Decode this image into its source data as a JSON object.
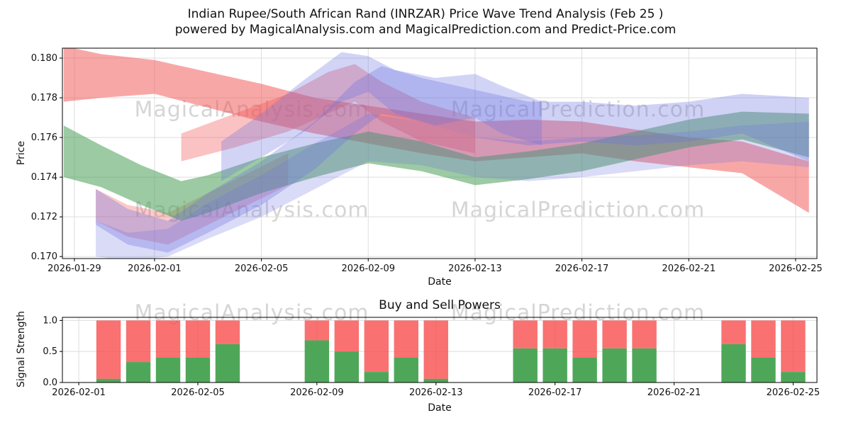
{
  "watermarks": {
    "analysis": "MagicalAnalysis.com",
    "prediction": "MagicalPrediction.com"
  },
  "chart_data": [
    {
      "type": "area",
      "title": "Indian Rupee/South African Rand (INRZAR) Price Wave Trend Analysis (Feb 25 )",
      "subtitle": "powered by MagicalAnalysis.com and MagicalPrediction.com and Predict-Price.com",
      "xlabel": "Date",
      "ylabel": "Price",
      "grid": true,
      "legend": "none",
      "xlim_days": [
        -0.45,
        27.8
      ],
      "ylim": [
        0.1699,
        0.1805
      ],
      "x_ticks": [
        {
          "label": "2026-01-29",
          "day": 0
        },
        {
          "label": "2026-02-01",
          "day": 3
        },
        {
          "label": "2026-02-05",
          "day": 7
        },
        {
          "label": "2026-02-09",
          "day": 11
        },
        {
          "label": "2026-02-13",
          "day": 15
        },
        {
          "label": "2026-02-17",
          "day": 19
        },
        {
          "label": "2026-02-21",
          "day": 23
        },
        {
          "label": "2026-02-25",
          "day": 27
        }
      ],
      "y_ticks": [
        {
          "label": "0.170",
          "value": 0.17
        },
        {
          "label": "0.172",
          "value": 0.172
        },
        {
          "label": "0.174",
          "value": 0.174
        },
        {
          "label": "0.176",
          "value": 0.176
        },
        {
          "label": "0.178",
          "value": 0.178
        },
        {
          "label": "0.180",
          "value": 0.18
        }
      ],
      "bands": [
        {
          "name": "red-upper-trend",
          "color": "#f25050",
          "opacity": 0.5,
          "points": [
            [
              -0.4,
              0.1778,
              0.1806
            ],
            [
              1,
              0.178,
              0.1802
            ],
            [
              3,
              0.1782,
              0.1799
            ],
            [
              5,
              0.1775,
              0.1793
            ],
            [
              7,
              0.1768,
              0.1787
            ],
            [
              9,
              0.1762,
              0.178
            ],
            [
              11,
              0.1757,
              0.1776
            ],
            [
              13,
              0.1752,
              0.1772
            ],
            [
              15,
              0.1748,
              0.1768
            ],
            [
              17,
              0.175,
              0.1769
            ],
            [
              19,
              0.1752,
              0.1768
            ],
            [
              21,
              0.1748,
              0.1764
            ],
            [
              23,
              0.1745,
              0.176
            ],
            [
              25,
              0.1742,
              0.1758
            ],
            [
              27.5,
              0.1722,
              0.1748
            ]
          ]
        },
        {
          "name": "red-mid-wave",
          "color": "#f25050",
          "opacity": 0.35,
          "points": [
            [
              4,
              0.1748,
              0.1762
            ],
            [
              6,
              0.1755,
              0.1772
            ],
            [
              8,
              0.1763,
              0.1782
            ],
            [
              9.5,
              0.1772,
              0.1793
            ],
            [
              10.5,
              0.1778,
              0.1797
            ],
            [
              11.5,
              0.1768,
              0.1788
            ],
            [
              13,
              0.1758,
              0.1778
            ],
            [
              15,
              0.1752,
              0.177
            ]
          ]
        },
        {
          "name": "red-lower-left-wave",
          "color": "#f25050",
          "opacity": 0.3,
          "points": [
            [
              0.8,
              0.1718,
              0.1734
            ],
            [
              2,
              0.171,
              0.1726
            ],
            [
              3.5,
              0.1706,
              0.1722
            ],
            [
              5,
              0.1716,
              0.1732
            ],
            [
              6.5,
              0.1726,
              0.1742
            ],
            [
              8,
              0.1736,
              0.1752
            ]
          ]
        },
        {
          "name": "green-trend",
          "color": "#4a9e58",
          "opacity": 0.55,
          "points": [
            [
              -0.4,
              0.174,
              0.1766
            ],
            [
              1,
              0.1735,
              0.1756
            ],
            [
              2.5,
              0.1726,
              0.1746
            ],
            [
              4,
              0.1718,
              0.1738
            ],
            [
              5,
              0.1722,
              0.1741
            ],
            [
              7,
              0.1732,
              0.175
            ],
            [
              9,
              0.174,
              0.1757
            ],
            [
              11,
              0.1747,
              0.1763
            ],
            [
              13,
              0.1743,
              0.1758
            ],
            [
              15,
              0.1736,
              0.175
            ],
            [
              17,
              0.1739,
              0.1753
            ],
            [
              19,
              0.1743,
              0.1757
            ],
            [
              21,
              0.1749,
              0.1763
            ],
            [
              23,
              0.1755,
              0.1769
            ],
            [
              25,
              0.1759,
              0.1773
            ],
            [
              27.5,
              0.175,
              0.1772
            ]
          ]
        },
        {
          "name": "blue-main-wave",
          "color": "#6a6fe0",
          "opacity": 0.32,
          "points": [
            [
              0.8,
              0.1716,
              0.1734
            ],
            [
              2,
              0.1706,
              0.1724
            ],
            [
              3.5,
              0.1702,
              0.1718
            ],
            [
              5,
              0.1712,
              0.1732
            ],
            [
              7,
              0.1726,
              0.1748
            ],
            [
              9,
              0.1744,
              0.1768
            ],
            [
              10.5,
              0.1762,
              0.1788
            ],
            [
              11.5,
              0.1772,
              0.1796
            ],
            [
              13,
              0.1768,
              0.179
            ],
            [
              15,
              0.176,
              0.1784
            ],
            [
              17,
              0.1756,
              0.1778
            ],
            [
              19,
              0.1758,
              0.1778
            ],
            [
              21,
              0.1756,
              0.1776
            ],
            [
              23,
              0.1758,
              0.1778
            ],
            [
              25,
              0.1762,
              0.1782
            ],
            [
              27.5,
              0.1748,
              0.178
            ]
          ]
        },
        {
          "name": "blue-lower-wave",
          "color": "#6a6fe0",
          "opacity": 0.25,
          "points": [
            [
              0.8,
              0.17,
              0.1718
            ],
            [
              2,
              0.1698,
              0.1712
            ],
            [
              3.5,
              0.17,
              0.1714
            ],
            [
              5,
              0.1709,
              0.1727
            ],
            [
              7,
              0.172,
              0.1741
            ],
            [
              9,
              0.1734,
              0.1757
            ],
            [
              11,
              0.1748,
              0.1772
            ],
            [
              13,
              0.1746,
              0.1768
            ],
            [
              15,
              0.174,
              0.176
            ],
            [
              17,
              0.1738,
              0.1758
            ],
            [
              19,
              0.174,
              0.176
            ],
            [
              21,
              0.1743,
              0.1761
            ],
            [
              23,
              0.1746,
              0.1763
            ],
            [
              25,
              0.1748,
              0.1766
            ],
            [
              27.5,
              0.1745,
              0.1768
            ]
          ]
        },
        {
          "name": "blue-peak-wave",
          "color": "#6a6fe0",
          "opacity": 0.3,
          "points": [
            [
              5.5,
              0.1738,
              0.1758
            ],
            [
              7,
              0.175,
              0.1772
            ],
            [
              8.5,
              0.1762,
              0.1788
            ],
            [
              10,
              0.1778,
              0.1803
            ],
            [
              11,
              0.1783,
              0.1801
            ],
            [
              12,
              0.1772,
              0.1794
            ],
            [
              13.5,
              0.1766,
              0.179
            ],
            [
              15,
              0.177,
              0.1792
            ],
            [
              16,
              0.1762,
              0.1786
            ],
            [
              17.5,
              0.1756,
              0.1778
            ]
          ]
        }
      ]
    },
    {
      "type": "bar",
      "title": "Buy and Sell Powers",
      "xlabel": "Date",
      "ylabel": "Signal Strength",
      "grid": true,
      "stacked": true,
      "xlim_days": [
        -0.55,
        24.8
      ],
      "ylim": [
        0,
        1.05
      ],
      "x_ticks": [
        {
          "label": "2026-02-01",
          "day": 0
        },
        {
          "label": "2026-02-05",
          "day": 4
        },
        {
          "label": "2026-02-09",
          "day": 8
        },
        {
          "label": "2026-02-13",
          "day": 12
        },
        {
          "label": "2026-02-17",
          "day": 16
        },
        {
          "label": "2026-02-21",
          "day": 20
        },
        {
          "label": "2026-02-25",
          "day": 24
        }
      ],
      "y_ticks": [
        {
          "label": "0.0",
          "value": 0.0
        },
        {
          "label": "0.5",
          "value": 0.5
        },
        {
          "label": "1.0",
          "value": 1.0
        }
      ],
      "dates": [
        "2026-02-02",
        "2026-02-03",
        "2026-02-04",
        "2026-02-05",
        "2026-02-06",
        "2026-02-09",
        "2026-02-10",
        "2026-02-11",
        "2026-02-12",
        "2026-02-13",
        "2026-02-16",
        "2026-02-17",
        "2026-02-18",
        "2026-02-19",
        "2026-02-20",
        "2026-02-23",
        "2026-02-24",
        "2026-02-25"
      ],
      "day_offsets": [
        1,
        2,
        3,
        4,
        5,
        8,
        9,
        10,
        11,
        12,
        15,
        16,
        17,
        18,
        19,
        22,
        23,
        24
      ],
      "series": [
        {
          "name": "buy",
          "color": "#44a24f",
          "values": [
            0.06,
            0.33,
            0.4,
            0.4,
            0.62,
            0.68,
            0.5,
            0.17,
            0.4,
            0.06,
            0.55,
            0.55,
            0.4,
            0.55,
            0.55,
            0.62,
            0.4,
            0.17
          ]
        },
        {
          "name": "sell",
          "color": "#f84d4d",
          "values": [
            0.94,
            0.67,
            0.6,
            0.6,
            0.38,
            0.32,
            0.5,
            0.83,
            0.6,
            0.94,
            0.45,
            0.45,
            0.6,
            0.45,
            0.45,
            0.38,
            0.6,
            0.83
          ]
        }
      ]
    }
  ]
}
